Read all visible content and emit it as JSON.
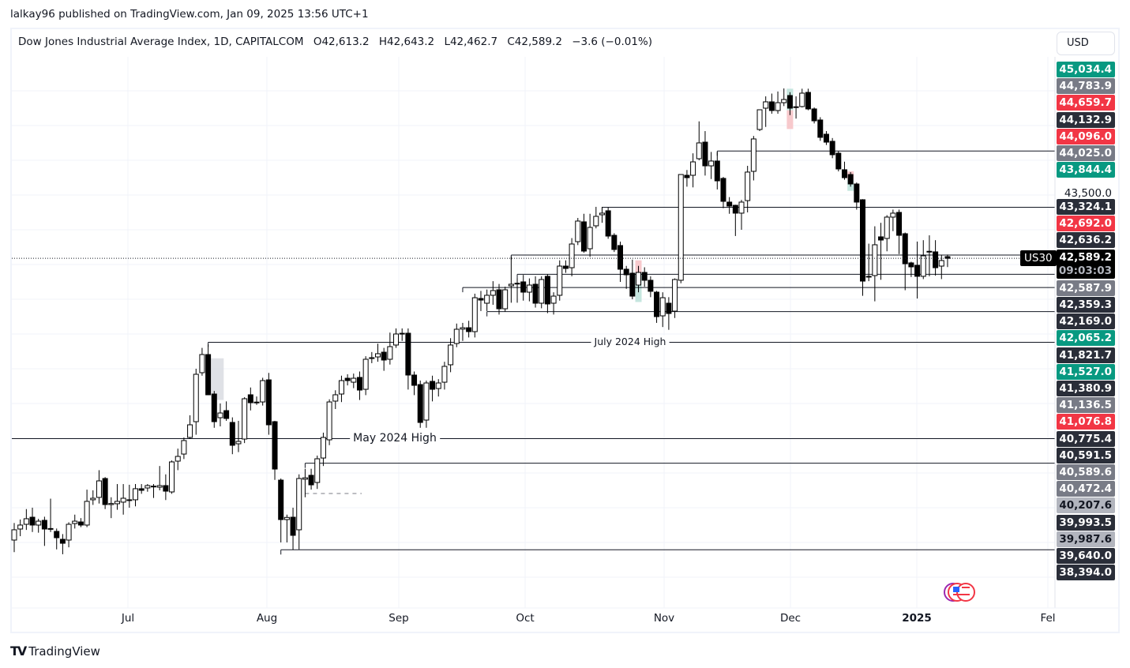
{
  "publisher_line": "lalkay96 published on TradingView.com, Jan 09, 2025 13:56 UTC+1",
  "legend": {
    "symbol": "Dow Jones Industrial Average Index, 1D, CAPITALCOM",
    "open": "O42,613.2",
    "high": "H42,643.2",
    "low": "L42,462.7",
    "close": "C42,589.2",
    "change": "−3.6 (−0.01%)"
  },
  "currency_button": "USD",
  "symbol_tag": "US30",
  "countdown": "09:03:03",
  "brand": "TradingView",
  "colors": {
    "up": "#ffffff",
    "down": "#000000",
    "green": "#089981",
    "red": "#f23645",
    "gray": "#787b86",
    "dark": "#2a2e39",
    "light": "#b2b5be"
  },
  "chart_data": {
    "type": "candlestick",
    "interval": "1D",
    "x_labels": [
      "Jul",
      "Aug",
      "Sep",
      "Oct",
      "Nov",
      "Dec",
      "2025",
      "Fel"
    ],
    "y_grid_label": "43,500.0",
    "ylim": [
      37800,
      45400
    ],
    "ohlc": [
      [
        38534,
        38780,
        38360,
        38682
      ],
      [
        38693,
        38830,
        38590,
        38750
      ],
      [
        38761,
        38980,
        38680,
        38841
      ],
      [
        38863,
        39000,
        38650,
        38750
      ],
      [
        38750,
        38840,
        38640,
        38806
      ],
      [
        38818,
        38870,
        38450,
        38693
      ],
      [
        38693,
        39130,
        38650,
        38700
      ],
      [
        38659,
        38700,
        38400,
        38568
      ],
      [
        38545,
        38620,
        38330,
        38488
      ],
      [
        38534,
        38790,
        38430,
        38761
      ],
      [
        38772,
        38900,
        38700,
        38806
      ],
      [
        38795,
        38850,
        38720,
        38750
      ],
      [
        38750,
        39260,
        38720,
        39091
      ],
      [
        39114,
        39250,
        39040,
        39136
      ],
      [
        39148,
        39540,
        39060,
        39386
      ],
      [
        39420,
        39440,
        38980,
        39045
      ],
      [
        39045,
        39150,
        38850,
        39060
      ],
      [
        39057,
        39340,
        38970,
        39091
      ],
      [
        39080,
        39340,
        38900,
        39136
      ],
      [
        39110,
        39330,
        39000,
        39114
      ],
      [
        39114,
        39340,
        39020,
        39273
      ],
      [
        39273,
        39340,
        39200,
        39250
      ],
      [
        39284,
        39340,
        39230,
        39318
      ],
      [
        39307,
        39340,
        39140,
        39310
      ],
      [
        39295,
        39600,
        39250,
        39318
      ],
      [
        39318,
        39480,
        39110,
        39238
      ],
      [
        39227,
        39680,
        39200,
        39659
      ],
      [
        39670,
        39850,
        39540,
        39738
      ],
      [
        39772,
        40010,
        39700,
        39966
      ],
      [
        40011,
        40330,
        39990,
        40193
      ],
      [
        40238,
        41000,
        40050,
        40920
      ],
      [
        40943,
        41300,
        40900,
        41204
      ],
      [
        41204,
        41350,
        40620,
        40625
      ],
      [
        40636,
        40680,
        40150,
        40238
      ],
      [
        40295,
        40500,
        40170,
        40363
      ],
      [
        40397,
        40530,
        40250,
        40284
      ],
      [
        40227,
        40300,
        39770,
        39898
      ],
      [
        39920,
        40250,
        39800,
        39954
      ],
      [
        39988,
        40590,
        39930,
        40568
      ],
      [
        40625,
        40730,
        40400,
        40511
      ],
      [
        40511,
        40600,
        40480,
        40520
      ],
      [
        40522,
        40870,
        40470,
        40829
      ],
      [
        40840,
        40940,
        40050,
        40193
      ],
      [
        40238,
        40250,
        39400,
        39556
      ],
      [
        39397,
        39420,
        38500,
        38829
      ],
      [
        38829,
        38900,
        38500,
        38860
      ],
      [
        38863,
        39000,
        38394,
        38602
      ],
      [
        38682,
        39480,
        38400,
        39420
      ],
      [
        39410,
        39560,
        39150,
        39430
      ],
      [
        39466,
        39560,
        39260,
        39329
      ],
      [
        39363,
        39750,
        39270,
        39704
      ],
      [
        39715,
        40080,
        39600,
        40011
      ],
      [
        39977,
        40560,
        39900,
        40522
      ],
      [
        40534,
        40690,
        40420,
        40625
      ],
      [
        40636,
        40900,
        40520,
        40829
      ],
      [
        40863,
        40920,
        40760,
        40829
      ],
      [
        40806,
        40930,
        40720,
        40863
      ],
      [
        40875,
        40960,
        40550,
        40693
      ],
      [
        40704,
        41180,
        40620,
        41136
      ],
      [
        41147,
        41240,
        41080,
        41159
      ],
      [
        41170,
        41360,
        41100,
        41216
      ],
      [
        41238,
        41300,
        40970,
        41125
      ],
      [
        41136,
        41520,
        41060,
        41318
      ],
      [
        41341,
        41580,
        41300,
        41500
      ],
      [
        41500,
        41580,
        41400,
        41510
      ],
      [
        41511,
        41580,
        40700,
        40909
      ],
      [
        40909,
        40960,
        40620,
        40761
      ],
      [
        40772,
        40830,
        40150,
        40227
      ],
      [
        40261,
        40830,
        40150,
        40795
      ],
      [
        40818,
        40900,
        40530,
        40704
      ],
      [
        40715,
        40850,
        40600,
        40795
      ],
      [
        40806,
        41100,
        40700,
        41034
      ],
      [
        41057,
        41440,
        40950,
        41341
      ],
      [
        41363,
        41650,
        41310,
        41568
      ],
      [
        41570,
        41660,
        41400,
        41590
      ],
      [
        41590,
        41690,
        41450,
        41534
      ],
      [
        41534,
        42080,
        41450,
        42022
      ],
      [
        42011,
        42120,
        41830,
        41988
      ],
      [
        41943,
        42140,
        41830,
        42057
      ],
      [
        42057,
        42260,
        41920,
        42125
      ],
      [
        42136,
        42220,
        41780,
        41863
      ],
      [
        41863,
        42180,
        41820,
        42136
      ],
      [
        42193,
        42614,
        41950,
        42216
      ],
      [
        42227,
        42300,
        41950,
        42230
      ],
      [
        42250,
        42350,
        41980,
        42102
      ],
      [
        42102,
        42300,
        41970,
        42204
      ],
      [
        42216,
        42330,
        41880,
        41943
      ],
      [
        41943,
        42330,
        41870,
        42284
      ],
      [
        42330,
        42360,
        41800,
        41932
      ],
      [
        41943,
        42100,
        41780,
        42045
      ],
      [
        42057,
        42560,
        41980,
        42477
      ],
      [
        42477,
        42560,
        42380,
        42443
      ],
      [
        42454,
        42880,
        42330,
        42795
      ],
      [
        42829,
        43170,
        42780,
        43125
      ],
      [
        43114,
        43230,
        42670,
        42693
      ],
      [
        42727,
        43230,
        42610,
        43034
      ],
      [
        43057,
        43330,
        43020,
        43193
      ],
      [
        43216,
        43330,
        43100,
        43239
      ],
      [
        43273,
        43320,
        42870,
        42909
      ],
      [
        42920,
        42950,
        42680,
        42716
      ],
      [
        42773,
        42830,
        42250,
        42432
      ],
      [
        42432,
        42480,
        42150,
        42352
      ],
      [
        42375,
        42570,
        42000,
        42045
      ],
      [
        42204,
        42480,
        42100,
        42386
      ],
      [
        42386,
        42460,
        42180,
        42273
      ],
      [
        42273,
        42330,
        42030,
        42114
      ],
      [
        42102,
        42120,
        41660,
        41750
      ],
      [
        41761,
        42100,
        41600,
        42022
      ],
      [
        41943,
        42030,
        41560,
        41795
      ],
      [
        41829,
        42300,
        41730,
        42284
      ],
      [
        42273,
        43800,
        42230,
        43795
      ],
      [
        43784,
        43860,
        43620,
        43750
      ],
      [
        43784,
        44100,
        43610,
        43977
      ],
      [
        44023,
        44560,
        44000,
        44250
      ],
      [
        44261,
        44420,
        43780,
        43920
      ],
      [
        43920,
        44120,
        43730,
        43989
      ],
      [
        43989,
        44120,
        43580,
        43704
      ],
      [
        43739,
        43760,
        43310,
        43409
      ],
      [
        43398,
        43470,
        43230,
        43341
      ],
      [
        43352,
        43360,
        42910,
        43239
      ],
      [
        43239,
        43430,
        43000,
        43398
      ],
      [
        43420,
        43920,
        43250,
        43830
      ],
      [
        43841,
        44350,
        43710,
        44307
      ],
      [
        44443,
        44730,
        44420,
        44727
      ],
      [
        44750,
        44920,
        44480,
        44841
      ],
      [
        44841,
        44960,
        44670,
        44716
      ],
      [
        44716,
        44990,
        44670,
        44829
      ],
      [
        44829,
        45034,
        44780,
        44875
      ],
      [
        44932,
        44980,
        44650,
        44750
      ],
      [
        44761,
        44920,
        44600,
        44770
      ],
      [
        44773,
        45030,
        44760,
        44966
      ],
      [
        44977,
        45030,
        44720,
        44739
      ],
      [
        44739,
        44760,
        44530,
        44568
      ],
      [
        44580,
        44620,
        44280,
        44330
      ],
      [
        44375,
        44420,
        44220,
        44261
      ],
      [
        44273,
        44320,
        44030,
        44080
      ],
      [
        44102,
        44130,
        43840,
        43875
      ],
      [
        43864,
        43980,
        43720,
        43750
      ],
      [
        43795,
        43830,
        43620,
        43659
      ],
      [
        43659,
        43680,
        43290,
        43398
      ],
      [
        43432,
        43440,
        42050,
        42261
      ],
      [
        42330,
        42800,
        42260,
        42320
      ],
      [
        42341,
        43050,
        41970,
        42784
      ],
      [
        42898,
        43100,
        42280,
        42852
      ],
      [
        42875,
        43210,
        42690,
        43182
      ],
      [
        43182,
        43290,
        42980,
        43239
      ],
      [
        43250,
        43290,
        42650,
        42920
      ],
      [
        42943,
        42960,
        42130,
        42511
      ],
      [
        42523,
        42540,
        42320,
        42466
      ],
      [
        42489,
        42830,
        42010,
        42330
      ],
      [
        42330,
        42850,
        42290,
        42625
      ],
      [
        42682,
        42920,
        42330,
        42690
      ],
      [
        42682,
        42850,
        42340,
        42454
      ],
      [
        42477,
        42640,
        42290,
        42557
      ],
      [
        42613,
        42643,
        42463,
        42589
      ]
    ],
    "current_price": 42589.2,
    "horizontal_levels": [
      {
        "price": 44132.9,
        "from_index": 116,
        "label": ""
      },
      {
        "price": 43324.1,
        "from_index": 97,
        "label": ""
      },
      {
        "price": 42636.2,
        "from_index": 82,
        "label": ""
      },
      {
        "price": 42359.3,
        "from_index": 83,
        "label": ""
      },
      {
        "price": 42169.0,
        "from_index": 74,
        "label": ""
      },
      {
        "price": 41821.7,
        "from_index": 78,
        "label": ""
      },
      {
        "price": 41380.9,
        "from_index": 32,
        "label": "July 2024 High"
      },
      {
        "price": 39993.5,
        "from_index": 0,
        "label": "May 2024 High"
      },
      {
        "price": 39640.0,
        "from_index": 48,
        "label": ""
      },
      {
        "price": 38394.0,
        "from_index": 44,
        "label": ""
      }
    ],
    "price_labels": [
      {
        "text": "45,034.4",
        "style": "green"
      },
      {
        "text": "44,783.9",
        "style": "gray"
      },
      {
        "text": "44,659.7",
        "style": "red"
      },
      {
        "text": "44,132.9",
        "style": "dark"
      },
      {
        "text": "44,096.0",
        "style": "red"
      },
      {
        "text": "44,025.0",
        "style": "gray"
      },
      {
        "text": "43,844.4",
        "style": "green"
      },
      {
        "text": "43,324.1",
        "style": "dark"
      },
      {
        "text": "42,692.0",
        "style": "red"
      },
      {
        "text": "42,636.2",
        "style": "dark"
      },
      {
        "text": "42,589.2",
        "style": "black"
      },
      {
        "text": "42,587.9",
        "style": "gray"
      },
      {
        "text": "42,359.3",
        "style": "dark"
      },
      {
        "text": "42,169.0",
        "style": "dark"
      },
      {
        "text": "42,065.2",
        "style": "green"
      },
      {
        "text": "41,821.7",
        "style": "dark"
      },
      {
        "text": "41,527.0",
        "style": "green"
      },
      {
        "text": "41,380.9",
        "style": "dark"
      },
      {
        "text": "41,136.5",
        "style": "gray"
      },
      {
        "text": "41,076.8",
        "style": "red"
      },
      {
        "text": "40,775.4",
        "style": "dark"
      },
      {
        "text": "40,591.5",
        "style": "dark"
      },
      {
        "text": "40,589.6",
        "style": "gray"
      },
      {
        "text": "40,472.4",
        "style": "gray"
      },
      {
        "text": "40,207.6",
        "style": "light"
      },
      {
        "text": "39,993.5",
        "style": "dark"
      },
      {
        "text": "39,987.6",
        "style": "light"
      },
      {
        "text": "39,640.0",
        "style": "dark"
      },
      {
        "text": "38,394.0",
        "style": "dark"
      }
    ]
  }
}
